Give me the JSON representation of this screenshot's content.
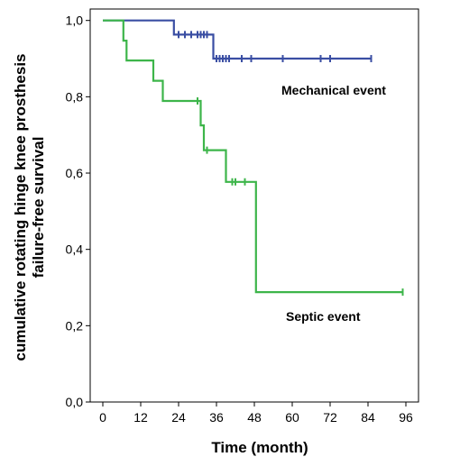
{
  "chart_data": {
    "type": "line",
    "step": true,
    "xlabel": "Time (month)",
    "ylabel_lines": [
      "cumulative rotating hinge knee prosthesis",
      "failure-free survival"
    ],
    "x_ticks": [
      0,
      12,
      24,
      36,
      48,
      60,
      72,
      84,
      96
    ],
    "y_ticks": [
      "0,0",
      "0,2",
      "0,4",
      "0,6",
      "0,8",
      "1,0"
    ],
    "xlim": [
      -4,
      100
    ],
    "ylim": [
      0,
      1.03
    ],
    "grid": false,
    "series": [
      {
        "name": "Mechanical event",
        "color": "#3a4ea3",
        "points": [
          [
            0,
            1.0
          ],
          [
            22.5,
            1.0
          ],
          [
            22.5,
            0.963
          ],
          [
            35,
            0.963
          ],
          [
            35,
            0.9
          ],
          [
            85,
            0.9
          ]
        ],
        "censored": [
          [
            24,
            0.963
          ],
          [
            26,
            0.963
          ],
          [
            28,
            0.963
          ],
          [
            30,
            0.963
          ],
          [
            31,
            0.963
          ],
          [
            32,
            0.963
          ],
          [
            33,
            0.963
          ],
          [
            36,
            0.9
          ],
          [
            37,
            0.9
          ],
          [
            38,
            0.9
          ],
          [
            39,
            0.9
          ],
          [
            40,
            0.9
          ],
          [
            44,
            0.9
          ],
          [
            47,
            0.9
          ],
          [
            57,
            0.9
          ],
          [
            69,
            0.9
          ],
          [
            72,
            0.9
          ],
          [
            85,
            0.9
          ]
        ]
      },
      {
        "name": "Septic event",
        "color": "#3db54a",
        "points": [
          [
            0,
            1.0
          ],
          [
            6.5,
            1.0
          ],
          [
            6.5,
            0.947
          ],
          [
            7.5,
            0.947
          ],
          [
            7.5,
            0.895
          ],
          [
            16,
            0.895
          ],
          [
            16,
            0.842
          ],
          [
            19,
            0.842
          ],
          [
            19,
            0.789
          ],
          [
            31,
            0.789
          ],
          [
            31,
            0.725
          ],
          [
            32,
            0.725
          ],
          [
            32,
            0.66
          ],
          [
            39,
            0.66
          ],
          [
            39,
            0.577
          ],
          [
            48.5,
            0.577
          ],
          [
            48.5,
            0.288
          ],
          [
            95,
            0.288
          ]
        ],
        "censored": [
          [
            30,
            0.789
          ],
          [
            33,
            0.66
          ],
          [
            41,
            0.577
          ],
          [
            42,
            0.577
          ],
          [
            45,
            0.577
          ],
          [
            95,
            0.288
          ]
        ]
      }
    ],
    "annotations": [
      "Mechanical event",
      "Septic event"
    ]
  }
}
